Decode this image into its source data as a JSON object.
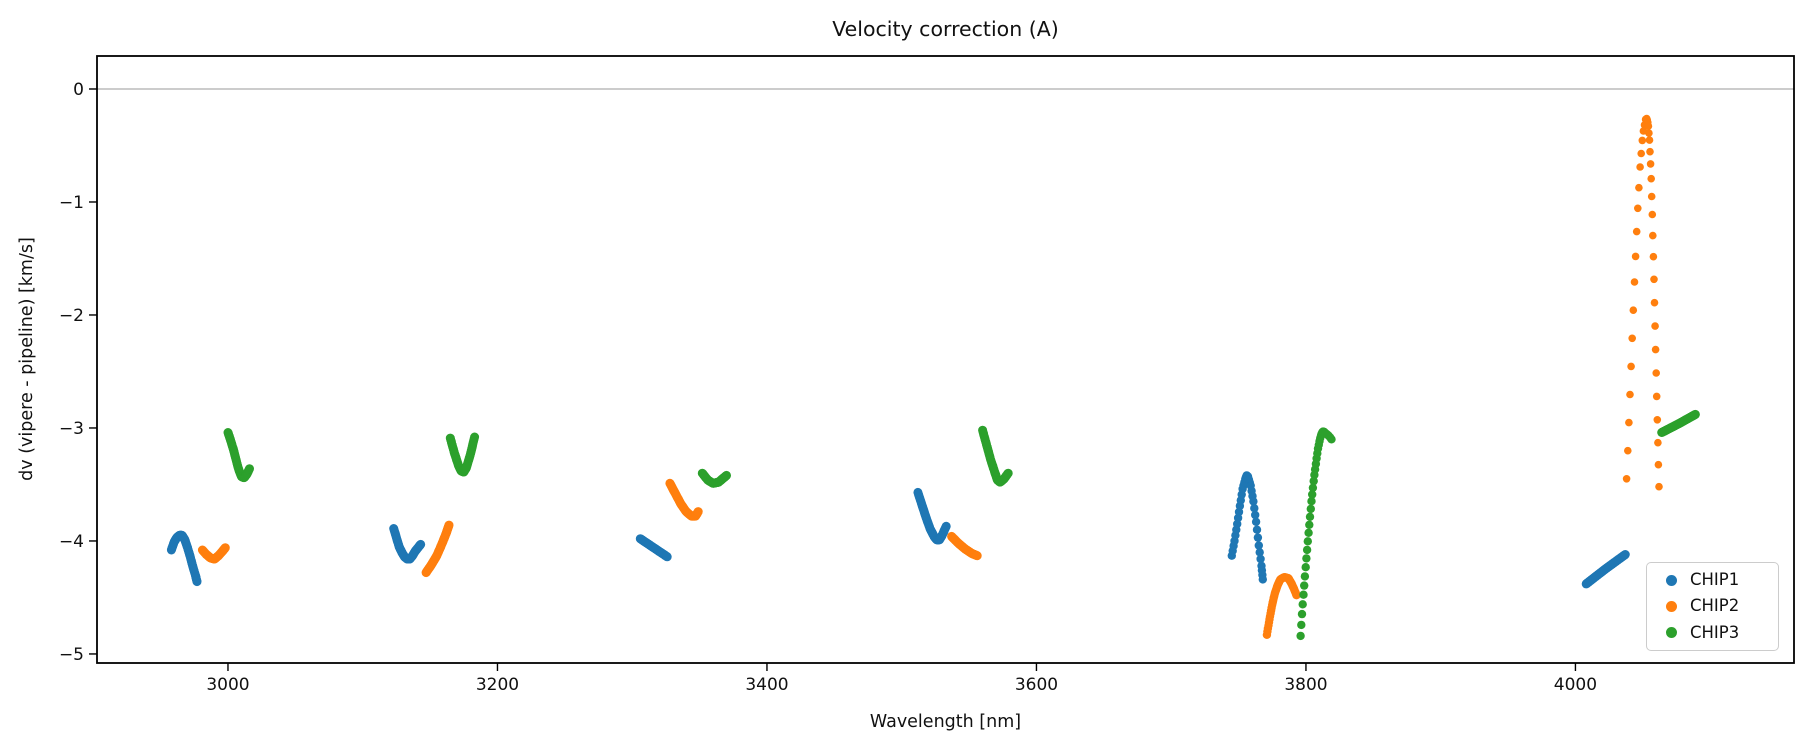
{
  "figure": {
    "title": "Velocity correction (A)"
  },
  "chart_data": {
    "type": "scatter",
    "title": "Velocity correction (A)",
    "xlabel": "Wavelength [nm]",
    "ylabel": "dv (vipere - pipeline) [km/s]",
    "xlim": [
      2902.8,
      4162.2
    ],
    "ylim": [
      -5.08,
      0.292
    ],
    "xticks": [
      3000,
      3200,
      3400,
      3600,
      3800,
      4000
    ],
    "xtick_labels": [
      "3000",
      "3200",
      "3400",
      "3600",
      "3800",
      "4000"
    ],
    "yticks": [
      0,
      -1,
      -2,
      -3,
      -4,
      -5
    ],
    "ytick_labels": [
      "0",
      "−1",
      "−2",
      "−3",
      "−4",
      "−5"
    ],
    "zero_line_y": 0,
    "grid": false,
    "legend": {
      "position": "lower right",
      "entries": [
        "CHIP1",
        "CHIP2",
        "CHIP3"
      ]
    },
    "colors": {
      "CHIP1": "#1f77b4",
      "CHIP2": "#ff7f0e",
      "CHIP3": "#2ca02c",
      "zero_line": "#999999",
      "spine": "#000000"
    },
    "series": [
      {
        "name": "CHIP1",
        "color": "#1f77b4",
        "segments": [
          {
            "n": 63,
            "r": 4.5,
            "points": [
              [
                2958,
                -4.08
              ],
              [
                2960,
                -4.01
              ],
              [
                2962,
                -3.97
              ],
              [
                2964,
                -3.95
              ],
              [
                2966,
                -3.95
              ],
              [
                2968,
                -3.99
              ],
              [
                2970,
                -4.06
              ],
              [
                2972,
                -4.14
              ],
              [
                2974,
                -4.23
              ],
              [
                2976,
                -4.31
              ],
              [
                2977,
                -4.36
              ]
            ]
          },
          {
            "n": 66,
            "r": 4.5,
            "points": [
              [
                3123,
                -3.89
              ],
              [
                3125,
                -3.97
              ],
              [
                3127,
                -4.05
              ],
              [
                3129,
                -4.1
              ],
              [
                3131,
                -4.14
              ],
              [
                3133,
                -4.16
              ],
              [
                3135,
                -4.16
              ],
              [
                3137,
                -4.13
              ],
              [
                3139,
                -4.09
              ],
              [
                3141,
                -4.06
              ],
              [
                3143,
                -4.03
              ]
            ]
          },
          {
            "n": 60,
            "r": 4.5,
            "points": [
              [
                3306,
                -3.98
              ],
              [
                3311,
                -4.02
              ],
              [
                3316,
                -4.06
              ],
              [
                3321,
                -4.1
              ],
              [
                3326,
                -4.14
              ]
            ]
          },
          {
            "n": 68,
            "r": 4.5,
            "points": [
              [
                3512,
                -3.57
              ],
              [
                3515,
                -3.68
              ],
              [
                3518,
                -3.79
              ],
              [
                3521,
                -3.89
              ],
              [
                3524,
                -3.96
              ],
              [
                3526,
                -3.99
              ],
              [
                3528,
                -3.99
              ],
              [
                3530,
                -3.95
              ],
              [
                3533,
                -3.87
              ]
            ]
          },
          {
            "n": 40,
            "r": 4.2,
            "points": [
              [
                3745,
                -4.13
              ],
              [
                3747,
                -4.0
              ],
              [
                3749,
                -3.85
              ],
              [
                3751,
                -3.69
              ],
              [
                3753,
                -3.54
              ],
              [
                3755,
                -3.45
              ],
              [
                3756,
                -3.42
              ],
              [
                3757,
                -3.43
              ],
              [
                3759,
                -3.51
              ],
              [
                3761,
                -3.65
              ],
              [
                3763,
                -3.83
              ],
              [
                3765,
                -4.04
              ],
              [
                3767,
                -4.22
              ],
              [
                3768,
                -4.34
              ]
            ]
          },
          {
            "n": 90,
            "r": 4.5,
            "points": [
              [
                4008,
                -4.38
              ],
              [
                4022,
                -4.25
              ],
              [
                4037,
                -4.12
              ]
            ]
          }
        ]
      },
      {
        "name": "CHIP2",
        "color": "#ff7f0e",
        "segments": [
          {
            "n": 56,
            "r": 4.5,
            "points": [
              [
                2981,
                -4.08
              ],
              [
                2984,
                -4.12
              ],
              [
                2987,
                -4.15
              ],
              [
                2990,
                -4.16
              ],
              [
                2993,
                -4.13
              ],
              [
                2996,
                -4.09
              ],
              [
                2998,
                -4.06
              ]
            ]
          },
          {
            "n": 56,
            "r": 4.5,
            "points": [
              [
                3147,
                -4.28
              ],
              [
                3151,
                -4.21
              ],
              [
                3155,
                -4.13
              ],
              [
                3159,
                -4.02
              ],
              [
                3162,
                -3.93
              ],
              [
                3164,
                -3.86
              ]
            ]
          },
          {
            "n": 64,
            "r": 4.5,
            "points": [
              [
                3328,
                -3.49
              ],
              [
                3332,
                -3.58
              ],
              [
                3336,
                -3.67
              ],
              [
                3340,
                -3.74
              ],
              [
                3344,
                -3.78
              ],
              [
                3347,
                -3.78
              ],
              [
                3349,
                -3.74
              ]
            ]
          },
          {
            "n": 58,
            "r": 4.5,
            "points": [
              [
                3537,
                -3.96
              ],
              [
                3542,
                -4.02
              ],
              [
                3547,
                -4.07
              ],
              [
                3552,
                -4.11
              ],
              [
                3556,
                -4.13
              ]
            ]
          },
          {
            "n": 52,
            "r": 4.2,
            "points": [
              [
                3771,
                -4.83
              ],
              [
                3773,
                -4.69
              ],
              [
                3775,
                -4.56
              ],
              [
                3777,
                -4.46
              ],
              [
                3779,
                -4.39
              ],
              [
                3781,
                -4.34
              ],
              [
                3784,
                -4.32
              ],
              [
                3787,
                -4.33
              ],
              [
                3789,
                -4.37
              ],
              [
                3791,
                -4.42
              ],
              [
                3793,
                -4.48
              ]
            ]
          },
          {
            "n": 42,
            "r": 3.8,
            "points": [
              [
                4038,
                -3.45
              ],
              [
                4040,
                -2.85
              ],
              [
                4042,
                -2.25
              ],
              [
                4044,
                -1.65
              ],
              [
                4046,
                -1.12
              ],
              [
                4048,
                -0.68
              ],
              [
                4050,
                -0.4
              ],
              [
                4052,
                -0.27
              ],
              [
                4053,
                -0.26
              ],
              [
                4054,
                -0.31
              ],
              [
                4055,
                -0.46
              ],
              [
                4056,
                -0.72
              ],
              [
                4057,
                -1.1
              ],
              [
                4058,
                -1.55
              ],
              [
                4059,
                -2.05
              ],
              [
                4060,
                -2.55
              ],
              [
                4061,
                -3.05
              ],
              [
                4062,
                -3.52
              ]
            ]
          }
        ]
      },
      {
        "name": "CHIP3",
        "color": "#2ca02c",
        "segments": [
          {
            "n": 54,
            "r": 4.5,
            "points": [
              [
                3000,
                -3.04
              ],
              [
                3002,
                -3.11
              ],
              [
                3004,
                -3.19
              ],
              [
                3006,
                -3.28
              ],
              [
                3008,
                -3.37
              ],
              [
                3010,
                -3.43
              ],
              [
                3012,
                -3.44
              ],
              [
                3014,
                -3.41
              ],
              [
                3016,
                -3.36
              ]
            ]
          },
          {
            "n": 60,
            "r": 4.5,
            "points": [
              [
                3165,
                -3.09
              ],
              [
                3168,
                -3.22
              ],
              [
                3171,
                -3.33
              ],
              [
                3173,
                -3.38
              ],
              [
                3175,
                -3.39
              ],
              [
                3177,
                -3.35
              ],
              [
                3180,
                -3.23
              ],
              [
                3183,
                -3.08
              ]
            ]
          },
          {
            "n": 56,
            "r": 4.5,
            "points": [
              [
                3352,
                -3.4
              ],
              [
                3356,
                -3.46
              ],
              [
                3360,
                -3.49
              ],
              [
                3364,
                -3.48
              ],
              [
                3367,
                -3.45
              ],
              [
                3370,
                -3.42
              ]
            ]
          },
          {
            "n": 62,
            "r": 4.5,
            "points": [
              [
                3560,
                -3.02
              ],
              [
                3563,
                -3.15
              ],
              [
                3566,
                -3.28
              ],
              [
                3569,
                -3.39
              ],
              [
                3571,
                -3.46
              ],
              [
                3573,
                -3.48
              ],
              [
                3576,
                -3.45
              ],
              [
                3579,
                -3.4
              ]
            ]
          },
          {
            "n": 38,
            "r": 4.2,
            "points": [
              [
                3796,
                -4.84
              ],
              [
                3797,
                -4.66
              ],
              [
                3798,
                -4.5
              ],
              [
                3799,
                -4.35
              ],
              [
                3800,
                -4.2
              ],
              [
                3801,
                -4.06
              ],
              [
                3802,
                -3.92
              ],
              [
                3803,
                -3.79
              ],
              [
                3804,
                -3.66
              ],
              [
                3805,
                -3.55
              ],
              [
                3806,
                -3.44
              ],
              [
                3807,
                -3.35
              ],
              [
                3808,
                -3.26
              ],
              [
                3809,
                -3.18
              ],
              [
                3810,
                -3.12
              ],
              [
                3811,
                -3.07
              ],
              [
                3812,
                -3.04
              ],
              [
                3813,
                -3.03
              ],
              [
                3815,
                -3.05
              ],
              [
                3817,
                -3.07
              ],
              [
                3819,
                -3.1
              ]
            ]
          },
          {
            "n": 78,
            "r": 4.5,
            "points": [
              [
                4064,
                -3.04
              ],
              [
                4077,
                -2.96
              ],
              [
                4089,
                -2.88
              ]
            ]
          }
        ]
      }
    ]
  }
}
